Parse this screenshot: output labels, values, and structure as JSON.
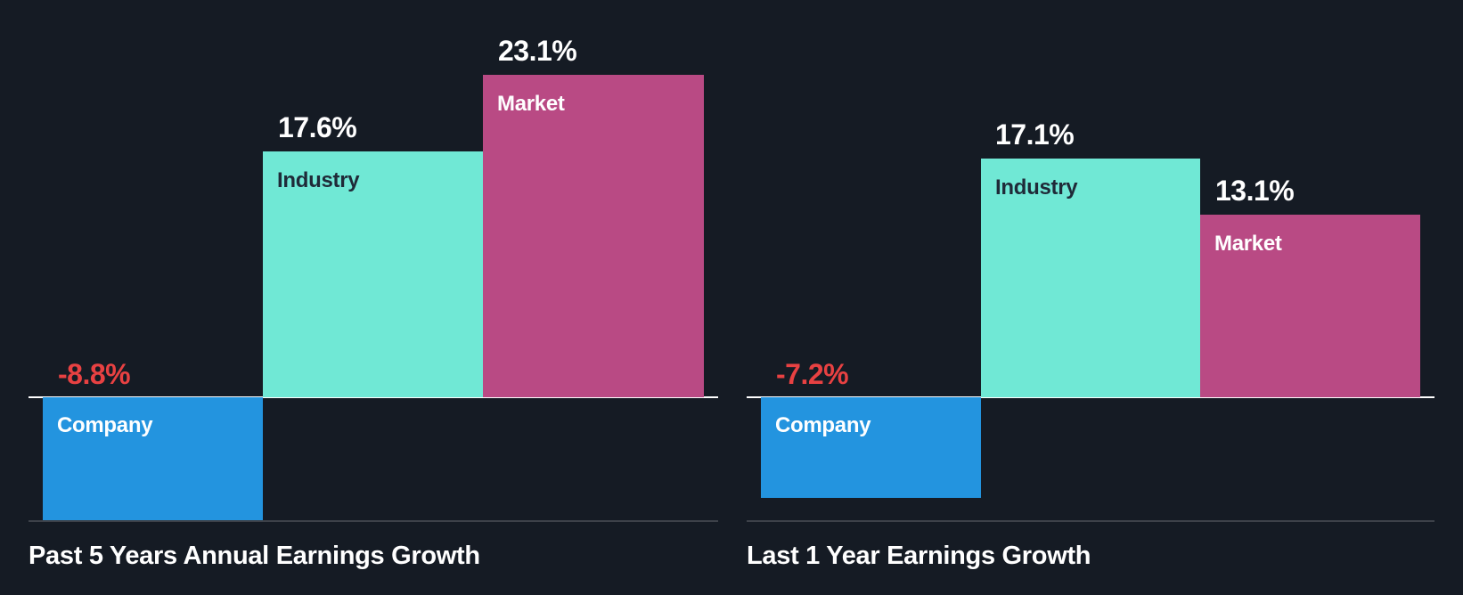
{
  "chart_data": [
    {
      "type": "bar",
      "title": "Past 5 Years Annual Earnings Growth",
      "categories": [
        "Company",
        "Industry",
        "Market"
      ],
      "values": [
        -8.8,
        17.6,
        23.1
      ],
      "value_labels": [
        "-8.8%",
        "17.6%",
        "23.1%"
      ],
      "unit": "%",
      "xlabel": "",
      "ylabel": "",
      "grid": false,
      "legend": "none (labels inside bars)"
    },
    {
      "type": "bar",
      "title": "Last 1 Year Earnings Growth",
      "categories": [
        "Company",
        "Industry",
        "Market"
      ],
      "values": [
        -7.2,
        17.1,
        13.1
      ],
      "value_labels": [
        "-7.2%",
        "17.1%",
        "13.1%"
      ],
      "unit": "%",
      "xlabel": "",
      "ylabel": "",
      "grid": false,
      "legend": "none (labels inside bars)"
    }
  ],
  "colors": {
    "background": "#151b24",
    "company": "#2394df",
    "industry": "#70e8d5",
    "market": "#b94a84",
    "negative_value": "#e84142",
    "positive_value": "#ffffff",
    "industry_label": "#1f2a38",
    "light_label": "#ffffff",
    "zero_line": "#ffffff",
    "axis_line": "#3d4149"
  },
  "panels": [
    {
      "title": "Past 5 Years Annual Earnings Growth",
      "bars": [
        {
          "label": "Company",
          "value_text": "-8.8%"
        },
        {
          "label": "Industry",
          "value_text": "17.6%"
        },
        {
          "label": "Market",
          "value_text": "23.1%"
        }
      ]
    },
    {
      "title": "Last 1 Year Earnings Growth",
      "bars": [
        {
          "label": "Company",
          "value_text": "-7.2%"
        },
        {
          "label": "Industry",
          "value_text": "17.1%"
        },
        {
          "label": "Market",
          "value_text": "13.1%"
        }
      ]
    }
  ]
}
